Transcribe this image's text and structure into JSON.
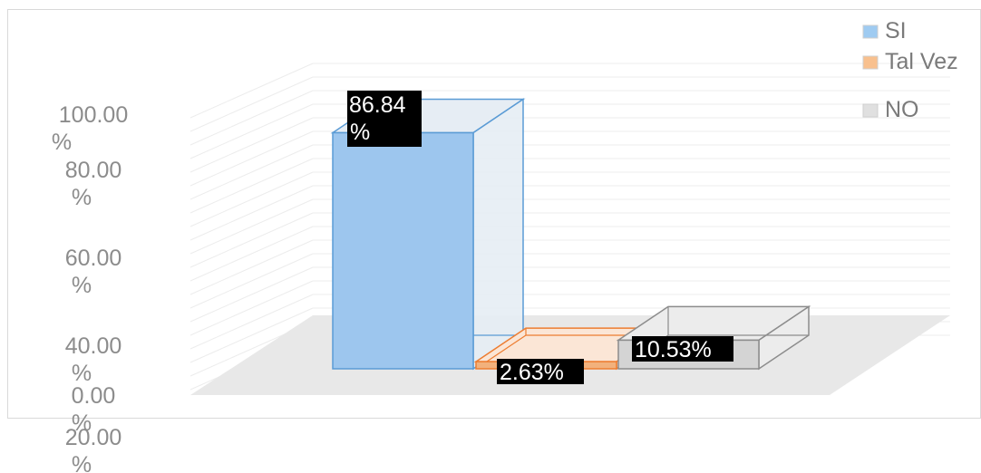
{
  "chart_data": {
    "type": "bar",
    "categories": [
      "SI",
      "Tal Vez",
      "NO"
    ],
    "values": [
      86.84,
      2.63,
      10.53
    ],
    "data_labels": [
      "86.84 %",
      "2.63%",
      "10.53%"
    ],
    "ylim": [
      0,
      100
    ],
    "y_ticks": [
      {
        "value": 100,
        "label": [
          "100.00",
          "%"
        ]
      },
      {
        "value": 80,
        "label": [
          "80.00",
          "%"
        ]
      },
      {
        "value": 60,
        "label": [
          "60.00",
          "%"
        ]
      },
      {
        "value": 40,
        "label": [
          "40.00",
          "%"
        ]
      },
      {
        "value": 20,
        "label": [
          "20.00",
          "%"
        ]
      },
      {
        "value": 0,
        "label": [
          "0.00",
          "%"
        ]
      }
    ],
    "legend": {
      "position": "top-right",
      "entries": [
        {
          "name": "SI",
          "color": "#9fcbf1"
        },
        {
          "name": "Tal Vez",
          "color": "#f8c08e"
        },
        {
          "name": "NO",
          "color": "#e0e0e0"
        }
      ]
    },
    "colors": {
      "SI": {
        "fill": "#9dc6ee",
        "side": "#e6edf4",
        "edge": "#5a9bd5"
      },
      "Tal Vez": {
        "fill": "#f2b17c",
        "side": "#fbe6d6",
        "edge": "#ed7d31"
      },
      "NO": {
        "fill": "#d4d4d4",
        "side": "#ececec",
        "edge": "#8c8c8c"
      }
    },
    "style": "3d-column",
    "grid": true
  }
}
